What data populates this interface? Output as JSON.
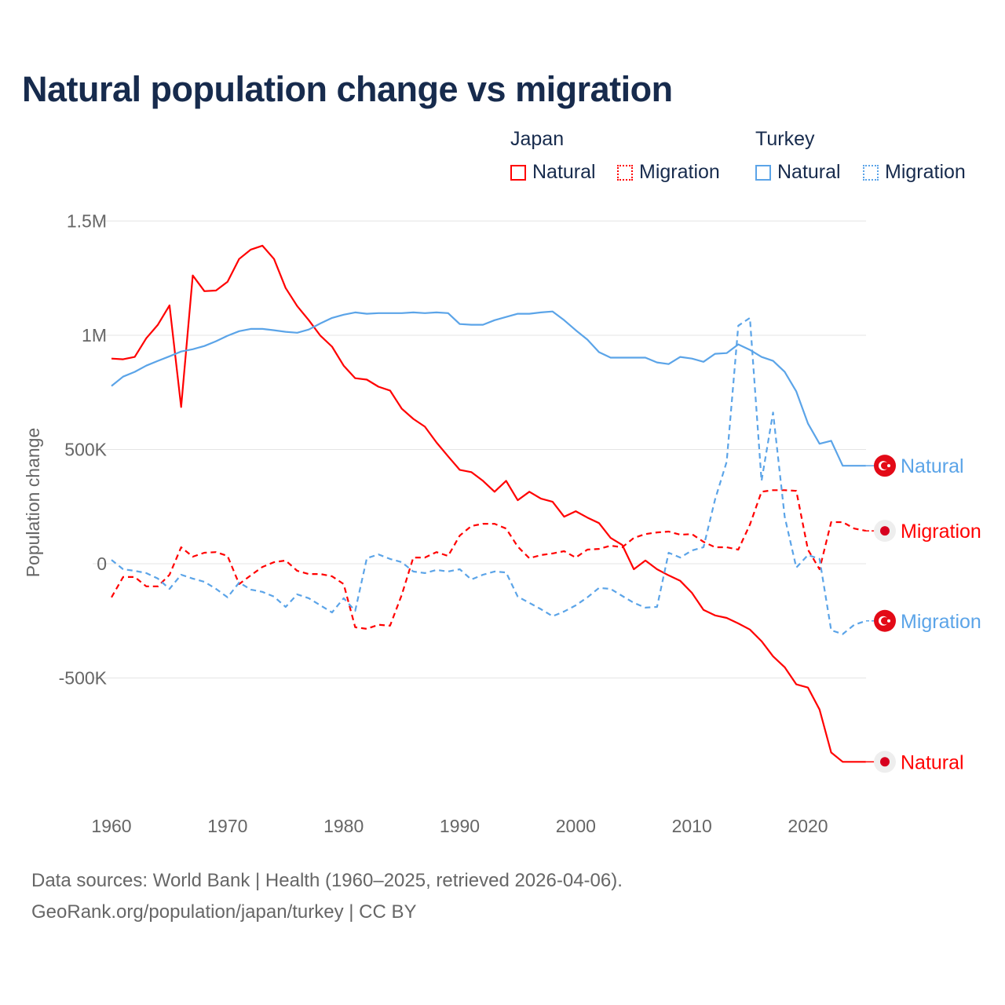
{
  "title": "Natural population change vs migration",
  "legend": {
    "groups": [
      {
        "name": "Japan",
        "color": "#ff0000",
        "items": [
          "Natural",
          "Migration"
        ]
      },
      {
        "name": "Turkey",
        "color": "#5ba4e8",
        "items": [
          "Natural",
          "Migration"
        ]
      }
    ]
  },
  "footer": {
    "line1": "Data sources: World Bank | Health (1960–2025, retrieved 2026-04-06).",
    "line2": "GeoRank.org/population/japan/turkey | CC BY"
  },
  "chart_data": {
    "type": "line",
    "title": "Natural population change vs migration",
    "xlabel": "",
    "ylabel": "Population change",
    "xlim": [
      1960,
      2025
    ],
    "ylim": [
      -1000000,
      1500000
    ],
    "x_ticks": [
      1960,
      1970,
      1980,
      1990,
      2000,
      2010,
      2020
    ],
    "x_tick_labels": [
      "1960",
      "1970",
      "1980",
      "1990",
      "2000",
      "2010",
      "2020"
    ],
    "y_ticks": [
      1500000,
      1000000,
      500000,
      0,
      -500000
    ],
    "y_tick_labels": [
      "1.5M",
      "1M",
      "500K",
      "0",
      "-500K"
    ],
    "grid": true,
    "legend_position": "top-right",
    "x_start": 1960,
    "series": [
      {
        "name": "Japan Natural",
        "country": "Japan",
        "kind": "Natural",
        "label": "Natural",
        "color": "#ff0000",
        "dashed": false,
        "flag": "japan",
        "values_k": [
          898,
          895,
          905,
          987,
          1046,
          1131,
          686,
          1262,
          1193,
          1196,
          1234,
          1334,
          1375,
          1392,
          1334,
          1207,
          1128,
          1066,
          998,
          950,
          867,
          812,
          806,
          775,
          758,
          679,
          634,
          600,
          531,
          470,
          411,
          401,
          363,
          315,
          363,
          278,
          315,
          285,
          271,
          206,
          230,
          202,
          178,
          113,
          82,
          -24,
          14,
          -24,
          -51,
          -75,
          -127,
          -202,
          -226,
          -237,
          -261,
          -288,
          -339,
          -405,
          -453,
          -528,
          -542,
          -638,
          -826,
          -867,
          -867,
          -867
        ]
      },
      {
        "name": "Japan Migration",
        "country": "Japan",
        "kind": "Migration",
        "label": "Migration",
        "color": "#ff0000",
        "dashed": true,
        "flag": "japan",
        "values_k": [
          -147,
          -58,
          -58,
          -99,
          -99,
          -48,
          72,
          31,
          48,
          51,
          34,
          -89,
          -51,
          -14,
          7,
          14,
          -31,
          -45,
          -45,
          -55,
          -89,
          -278,
          -285,
          -267,
          -271,
          -137,
          27,
          27,
          51,
          34,
          123,
          165,
          175,
          175,
          154,
          75,
          24,
          38,
          45,
          55,
          27,
          62,
          65,
          79,
          72,
          113,
          130,
          137,
          141,
          127,
          130,
          96,
          72,
          72,
          62,
          171,
          315,
          322,
          322,
          319,
          62,
          -24,
          182,
          182,
          154,
          144
        ]
      },
      {
        "name": "Turkey Natural",
        "country": "Turkey",
        "kind": "Natural",
        "label": "Natural",
        "color": "#5ba4e8",
        "dashed": false,
        "flag": "turkey",
        "values_k": [
          778,
          819,
          840,
          867,
          888,
          908,
          929,
          939,
          953,
          974,
          998,
          1018,
          1028,
          1028,
          1022,
          1015,
          1011,
          1025,
          1052,
          1076,
          1090,
          1100,
          1094,
          1097,
          1097,
          1097,
          1100,
          1097,
          1100,
          1097,
          1049,
          1046,
          1046,
          1066,
          1080,
          1094,
          1094,
          1100,
          1104,
          1066,
          1022,
          981,
          926,
          902,
          902,
          902,
          902,
          881,
          874,
          905,
          898,
          884,
          919,
          922,
          960,
          936,
          905,
          888,
          840,
          754,
          614,
          525,
          538,
          429,
          429,
          429
        ]
      },
      {
        "name": "Turkey Migration",
        "country": "Turkey",
        "kind": "Migration",
        "label": "Migration",
        "color": "#5ba4e8",
        "dashed": true,
        "flag": "turkey",
        "values_k": [
          17,
          -24,
          -31,
          -41,
          -65,
          -110,
          -48,
          -65,
          -79,
          -110,
          -147,
          -82,
          -113,
          -123,
          -144,
          -189,
          -134,
          -151,
          -182,
          -213,
          -151,
          -206,
          24,
          41,
          21,
          7,
          -34,
          -41,
          -27,
          -34,
          -24,
          -69,
          -48,
          -34,
          -38,
          -144,
          -171,
          -199,
          -230,
          -209,
          -182,
          -147,
          -106,
          -110,
          -141,
          -171,
          -192,
          -189,
          48,
          27,
          58,
          72,
          281,
          446,
          1042,
          1076,
          363,
          662,
          206,
          -17,
          38,
          21,
          -291,
          -308,
          -267,
          -250
        ]
      }
    ]
  }
}
